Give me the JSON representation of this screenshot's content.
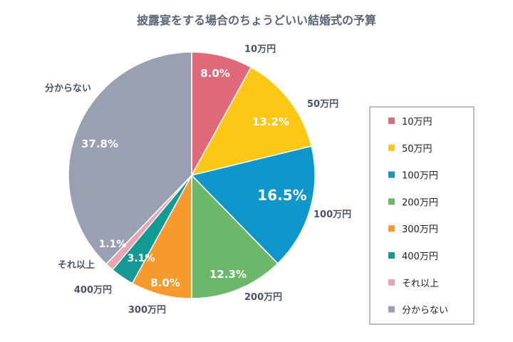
{
  "chart_data": {
    "type": "pie",
    "title": "披露宴をする場合のちょうどいい結婚式の予算",
    "slices": [
      {
        "label": "10万円",
        "value": 8.0,
        "display": "8.0%",
        "color": "#e06a7a"
      },
      {
        "label": "50万円",
        "value": 13.2,
        "display": "13.2%",
        "color": "#fcc715"
      },
      {
        "label": "100万円",
        "value": 16.5,
        "display": "16.5%",
        "color": "#0f97cc"
      },
      {
        "label": "200万円",
        "value": 12.3,
        "display": "12.3%",
        "color": "#6cb86b"
      },
      {
        "label": "300万円",
        "value": 8.0,
        "display": "8.0%",
        "color": "#f79a2e"
      },
      {
        "label": "400万円",
        "value": 3.1,
        "display": "3.1%",
        "color": "#149a93"
      },
      {
        "label": "それ以上",
        "value": 1.1,
        "display": "1.1%",
        "color": "#eaa4b2"
      },
      {
        "label": "分からない",
        "value": 37.8,
        "display": "37.8%",
        "color": "#98a0b2"
      }
    ],
    "legend_position": "right"
  }
}
